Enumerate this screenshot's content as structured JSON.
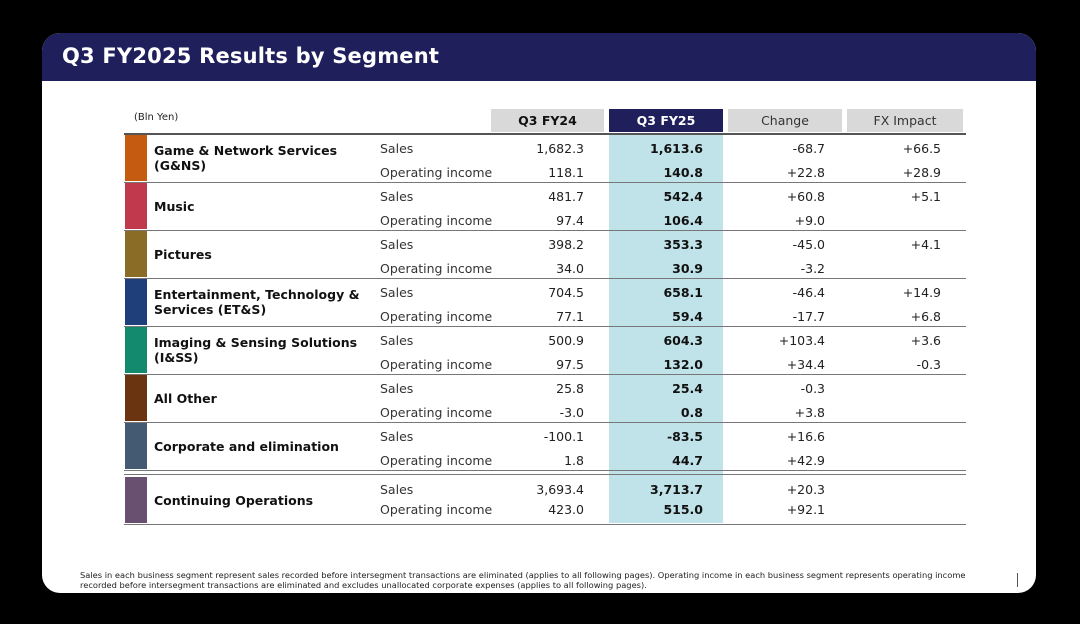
{
  "title": "Q3 FY2025 Results by Segment",
  "unit_label": "(Bln Yen)",
  "columns": {
    "fy24": "Q3 FY24",
    "fy25": "Q3 FY25",
    "change": "Change",
    "fx": "FX Impact"
  },
  "segments": [
    {
      "name": "Game & Network Services\n(G&NS)",
      "color": "#c55a11",
      "rows": [
        {
          "label": "Sales",
          "fy24": "1,682.3",
          "fy25": "1,613.6",
          "change": "-68.7",
          "fx": "+66.5"
        },
        {
          "label": "Operating income",
          "fy24": "118.1",
          "fy25": "140.8",
          "change": "+22.8",
          "fx": "+28.9"
        }
      ]
    },
    {
      "name": "Music",
      "color": "#c0394c",
      "rows": [
        {
          "label": "Sales",
          "fy24": "481.7",
          "fy25": "542.4",
          "change": "+60.8",
          "fx": "+5.1"
        },
        {
          "label": "Operating income",
          "fy24": "97.4",
          "fy25": "106.4",
          "change": "+9.0",
          "fx": ""
        }
      ]
    },
    {
      "name": "Pictures",
      "color": "#8b6c26",
      "rows": [
        {
          "label": "Sales",
          "fy24": "398.2",
          "fy25": "353.3",
          "change": "-45.0",
          "fx": "+4.1"
        },
        {
          "label": "Operating income",
          "fy24": "34.0",
          "fy25": "30.9",
          "change": "-3.2",
          "fx": ""
        }
      ]
    },
    {
      "name": "Entertainment, Technology &\nServices (ET&S)",
      "color": "#1f3f7a",
      "rows": [
        {
          "label": "Sales",
          "fy24": "704.5",
          "fy25": "658.1",
          "change": "-46.4",
          "fx": "+14.9"
        },
        {
          "label": "Operating income",
          "fy24": "77.1",
          "fy25": "59.4",
          "change": "-17.7",
          "fx": "+6.8"
        }
      ]
    },
    {
      "name": "Imaging & Sensing Solutions\n(I&SS)",
      "color": "#138a6e",
      "rows": [
        {
          "label": "Sales",
          "fy24": "500.9",
          "fy25": "604.3",
          "change": "+103.4",
          "fx": "+3.6"
        },
        {
          "label": "Operating income",
          "fy24": "97.5",
          "fy25": "132.0",
          "change": "+34.4",
          "fx": "-0.3"
        }
      ]
    },
    {
      "name": "All Other",
      "color": "#6b3410",
      "rows": [
        {
          "label": "Sales",
          "fy24": "25.8",
          "fy25": "25.4",
          "change": "-0.3",
          "fx": ""
        },
        {
          "label": "Operating income",
          "fy24": "-3.0",
          "fy25": "0.8",
          "change": "+3.8",
          "fx": ""
        }
      ]
    },
    {
      "name": "Corporate and elimination",
      "color": "#445a72",
      "rows": [
        {
          "label": "Sales",
          "fy24": "-100.1",
          "fy25": "-83.5",
          "change": "+16.6",
          "fx": ""
        },
        {
          "label": "Operating income",
          "fy24": "1.8",
          "fy25": "44.7",
          "change": "+42.9",
          "fx": ""
        }
      ]
    },
    {
      "name": "Continuing Operations",
      "color": "#6a5070",
      "rows": [
        {
          "label": "Sales",
          "fy24": "3,693.4",
          "fy25": "3,713.7",
          "change": "+20.3",
          "fx": ""
        },
        {
          "label": "Operating income",
          "fy24": "423.0",
          "fy25": "515.0",
          "change": "+92.1",
          "fx": ""
        }
      ]
    }
  ],
  "footnote": "Sales in each business segment represent sales recorded before intersegment transactions are eliminated (applies to all following pages). Operating income in each business segment represents operating income recorded before intersegment transactions are eliminated and excludes unallocated corporate expenses (applies to all following pages)."
}
